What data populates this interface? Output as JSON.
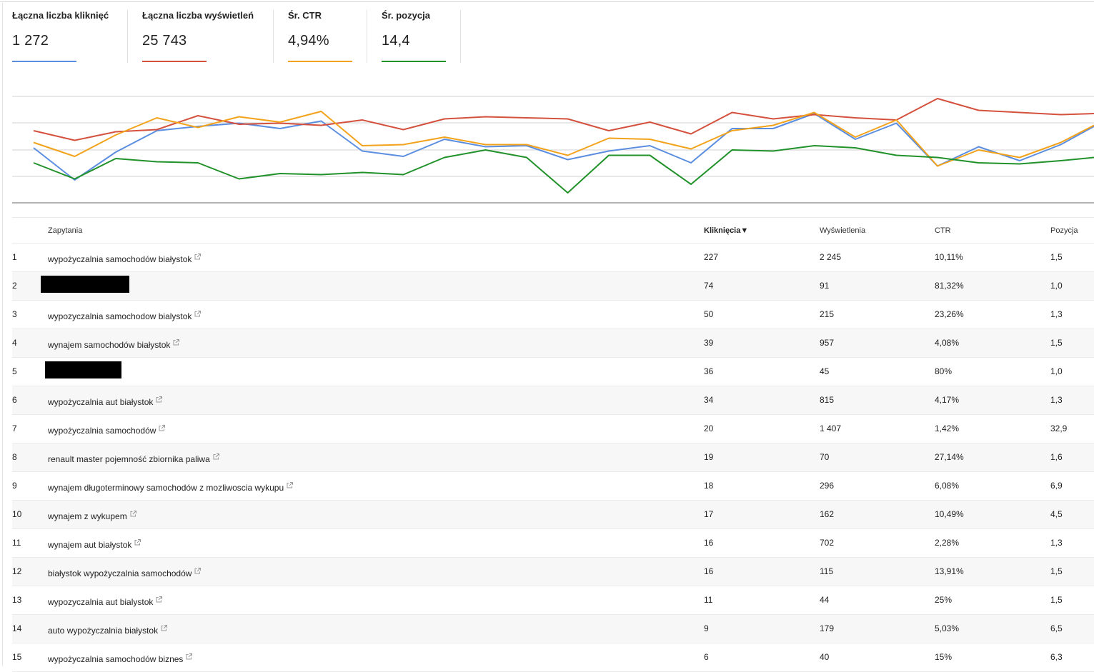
{
  "metrics": [
    {
      "label": "Łączna liczba kliknięć",
      "value": "1 272",
      "color": "#5b8ee0"
    },
    {
      "label": "Łączna liczba wyświetleń",
      "value": "25 743",
      "color": "#d4513e"
    },
    {
      "label": "Śr. CTR",
      "value": "4,94%",
      "color": "#f2a31b"
    },
    {
      "label": "Śr. pozycja",
      "value": "14,4",
      "color": "#21912a"
    }
  ],
  "chart_data": {
    "type": "line",
    "title": "",
    "xlabel": "",
    "ylabel": "",
    "grid": true,
    "series": [
      {
        "name": "Łączna liczba kliknięć",
        "color": "#5b8ee0",
        "values": [
          0.48,
          0.78,
          0.52,
          0.32,
          0.28,
          0.25,
          0.3,
          0.23,
          0.51,
          0.56,
          0.4,
          0.47,
          0.46,
          0.59,
          0.51,
          0.46,
          0.62,
          0.3,
          0.3,
          0.16,
          0.4,
          0.25,
          0.65,
          0.47,
          0.6,
          0.45,
          0.28
        ]
      },
      {
        "name": "Łączna liczba wyświetleń",
        "color": "#d4513e",
        "values": [
          0.32,
          0.41,
          0.33,
          0.31,
          0.18,
          0.26,
          0.25,
          0.27,
          0.22,
          0.31,
          0.21,
          0.19,
          0.2,
          0.21,
          0.32,
          0.24,
          0.35,
          0.15,
          0.21,
          0.17,
          0.2,
          0.22,
          0.02,
          0.13,
          0.15,
          0.17,
          0.16
        ]
      },
      {
        "name": "Śr. CTR",
        "color": "#f2a31b",
        "values": [
          0.43,
          0.56,
          0.36,
          0.2,
          0.29,
          0.19,
          0.24,
          0.14,
          0.46,
          0.45,
          0.38,
          0.45,
          0.45,
          0.55,
          0.39,
          0.4,
          0.49,
          0.32,
          0.27,
          0.15,
          0.38,
          0.22,
          0.65,
          0.5,
          0.57,
          0.43,
          0.27
        ]
      },
      {
        "name": "Śr. pozycja",
        "color": "#21912a",
        "values": [
          0.62,
          0.77,
          0.58,
          0.61,
          0.62,
          0.77,
          0.72,
          0.73,
          0.71,
          0.73,
          0.57,
          0.5,
          0.57,
          0.9,
          0.55,
          0.55,
          0.82,
          0.5,
          0.51,
          0.46,
          0.48,
          0.55,
          0.57,
          0.62,
          0.63,
          0.6,
          0.57
        ]
      }
    ]
  },
  "table": {
    "headers": {
      "query": "Zapytania",
      "clicks": "Kliknięcia▼",
      "impressions": "Wyświetlenia",
      "ctr": "CTR",
      "position": "Pozycja"
    },
    "rows": [
      {
        "n": "1",
        "q": "wypożyczalnia samochodów białystok",
        "clicks": "227",
        "impr": "2 245",
        "ctr": "10,11%",
        "pos": "1,5",
        "redacted": false
      },
      {
        "n": "2",
        "q": "",
        "clicks": "74",
        "impr": "91",
        "ctr": "81,32%",
        "pos": "1,0",
        "redacted": true
      },
      {
        "n": "3",
        "q": "wypozyczalnia samochodow bialystok",
        "clicks": "50",
        "impr": "215",
        "ctr": "23,26%",
        "pos": "1,3",
        "redacted": false
      },
      {
        "n": "4",
        "q": "wynajem samochodów białystok",
        "clicks": "39",
        "impr": "957",
        "ctr": "4,08%",
        "pos": "1,5",
        "redacted": false
      },
      {
        "n": "5",
        "q": "",
        "clicks": "36",
        "impr": "45",
        "ctr": "80%",
        "pos": "1,0",
        "redacted": true
      },
      {
        "n": "6",
        "q": "wypożyczalnia aut białystok",
        "clicks": "34",
        "impr": "815",
        "ctr": "4,17%",
        "pos": "1,3",
        "redacted": false
      },
      {
        "n": "7",
        "q": "wypożyczalnia samochodów",
        "clicks": "20",
        "impr": "1 407",
        "ctr": "1,42%",
        "pos": "32,9",
        "redacted": false
      },
      {
        "n": "8",
        "q": "renault master pojemność zbiornika paliwa",
        "clicks": "19",
        "impr": "70",
        "ctr": "27,14%",
        "pos": "1,6",
        "redacted": false
      },
      {
        "n": "9",
        "q": "wynajem długoterminowy samochodów z mozliwoscia wykupu",
        "clicks": "18",
        "impr": "296",
        "ctr": "6,08%",
        "pos": "6,9",
        "redacted": false
      },
      {
        "n": "10",
        "q": "wynajem z wykupem",
        "clicks": "17",
        "impr": "162",
        "ctr": "10,49%",
        "pos": "4,5",
        "redacted": false
      },
      {
        "n": "11",
        "q": "wynajem aut białystok",
        "clicks": "16",
        "impr": "702",
        "ctr": "2,28%",
        "pos": "1,3",
        "redacted": false
      },
      {
        "n": "12",
        "q": "białystok wypożyczalnia samochodów",
        "clicks": "16",
        "impr": "115",
        "ctr": "13,91%",
        "pos": "1,5",
        "redacted": false
      },
      {
        "n": "13",
        "q": "wypozyczalnia aut bialystok",
        "clicks": "11",
        "impr": "44",
        "ctr": "25%",
        "pos": "1,5",
        "redacted": false
      },
      {
        "n": "14",
        "q": "auto wypożyczalnia białystok",
        "clicks": "9",
        "impr": "179",
        "ctr": "5,03%",
        "pos": "6,5",
        "redacted": false
      },
      {
        "n": "15",
        "q": "wypożyczalnia samochodów biznes",
        "clicks": "6",
        "impr": "40",
        "ctr": "15%",
        "pos": "6,3",
        "redacted": false
      }
    ]
  }
}
